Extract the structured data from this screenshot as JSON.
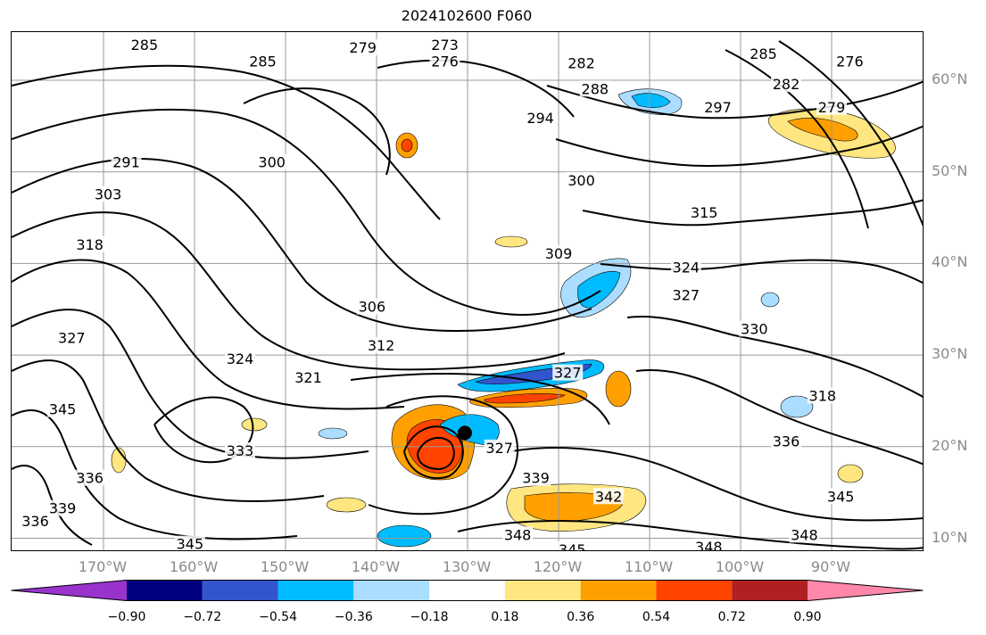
{
  "title": "2024102600 F060",
  "latitudes": [
    {
      "label": "60°N",
      "lat": 60
    },
    {
      "label": "50°N",
      "lat": 50
    },
    {
      "label": "40°N",
      "lat": 40
    },
    {
      "label": "30°N",
      "lat": 30
    },
    {
      "label": "20°N",
      "lat": 20
    },
    {
      "label": "10°N",
      "lat": 10
    }
  ],
  "longitudes": [
    {
      "label": "170°W",
      "lon": -170
    },
    {
      "label": "160°W",
      "lon": -160
    },
    {
      "label": "150°W",
      "lon": -150
    },
    {
      "label": "140°W",
      "lon": -140
    },
    {
      "label": "130°W",
      "lon": -130
    },
    {
      "label": "120°W",
      "lon": -120
    },
    {
      "label": "110°W",
      "lon": -110
    },
    {
      "label": "100°W",
      "lon": -100
    },
    {
      "label": "90°W",
      "lon": -90
    }
  ],
  "colorbar": {
    "ticks": [
      "−0.90",
      "−0.72",
      "−0.54",
      "−0.36",
      "−0.18",
      "0.18",
      "0.36",
      "0.54",
      "0.72",
      "0.90"
    ],
    "colors": [
      "#9933cc",
      "#000080",
      "#3355cc",
      "#00bbff",
      "#aaddff",
      "#ffffff",
      "#ffe680",
      "#ffa000",
      "#ff4400",
      "#b02020",
      "#ff88aa"
    ]
  },
  "contour_labels": [
    {
      "text": "285",
      "lon": -165.5,
      "lat": 63.8
    },
    {
      "text": "279",
      "lon": -141.5,
      "lat": 63.5
    },
    {
      "text": "273",
      "lon": -132.5,
      "lat": 63.8
    },
    {
      "text": "276",
      "lon": -132.5,
      "lat": 62.0
    },
    {
      "text": "282",
      "lon": -117.5,
      "lat": 61.8
    },
    {
      "text": "285",
      "lon": -97.5,
      "lat": 62.8
    },
    {
      "text": "276",
      "lon": -88.0,
      "lat": 62.0
    },
    {
      "text": "288",
      "lon": -116.0,
      "lat": 59.0
    },
    {
      "text": "282",
      "lon": -95.0,
      "lat": 59.5
    },
    {
      "text": "279",
      "lon": -90.0,
      "lat": 57.0
    },
    {
      "text": "297",
      "lon": -102.5,
      "lat": 57.0
    },
    {
      "text": "294",
      "lon": -122.0,
      "lat": 55.8
    },
    {
      "text": "285",
      "lon": -152.5,
      "lat": 62.0
    },
    {
      "text": "300",
      "lon": -151.5,
      "lat": 51.0
    },
    {
      "text": "300",
      "lon": -117.5,
      "lat": 49.0
    },
    {
      "text": "291",
      "lon": -167.5,
      "lat": 51.0
    },
    {
      "text": "303",
      "lon": -169.5,
      "lat": 47.5
    },
    {
      "text": "318",
      "lon": -171.5,
      "lat": 42.0
    },
    {
      "text": "315",
      "lon": -104.0,
      "lat": 45.5
    },
    {
      "text": "309",
      "lon": -120.0,
      "lat": 41.0
    },
    {
      "text": "324",
      "lon": -106.0,
      "lat": 39.5
    },
    {
      "text": "327",
      "lon": -106.0,
      "lat": 36.5
    },
    {
      "text": "306",
      "lon": -140.5,
      "lat": 35.2
    },
    {
      "text": "312",
      "lon": -139.5,
      "lat": 31.0
    },
    {
      "text": "324",
      "lon": -155.0,
      "lat": 29.5
    },
    {
      "text": "321",
      "lon": -147.5,
      "lat": 27.5
    },
    {
      "text": "327",
      "lon": -173.5,
      "lat": 31.8
    },
    {
      "text": "327",
      "lon": -119.0,
      "lat": 28.0
    },
    {
      "text": "330",
      "lon": -98.5,
      "lat": 32.8
    },
    {
      "text": "318",
      "lon": -91.0,
      "lat": 25.5
    },
    {
      "text": "345",
      "lon": -174.5,
      "lat": 24.0
    },
    {
      "text": "333",
      "lon": -155.0,
      "lat": 19.5
    },
    {
      "text": "336",
      "lon": -171.5,
      "lat": 16.5
    },
    {
      "text": "339",
      "lon": -174.5,
      "lat": 13.2
    },
    {
      "text": "336",
      "lon": -177.5,
      "lat": 11.8
    },
    {
      "text": "327",
      "lon": -126.5,
      "lat": 19.8
    },
    {
      "text": "339",
      "lon": -122.5,
      "lat": 16.5
    },
    {
      "text": "342",
      "lon": -114.5,
      "lat": 14.5
    },
    {
      "text": "336",
      "lon": -95.0,
      "lat": 20.5
    },
    {
      "text": "345",
      "lon": -160.5,
      "lat": 9.3
    },
    {
      "text": "348",
      "lon": -124.5,
      "lat": 10.3
    },
    {
      "text": "345",
      "lon": -118.5,
      "lat": 8.7
    },
    {
      "text": "348",
      "lon": -103.5,
      "lat": 9.0
    },
    {
      "text": "348",
      "lon": -93.0,
      "lat": 10.3
    },
    {
      "text": "345",
      "lon": -89.0,
      "lat": 14.5
    }
  ],
  "storm_center": {
    "lon": -130.3,
    "lat": 21.5
  }
}
